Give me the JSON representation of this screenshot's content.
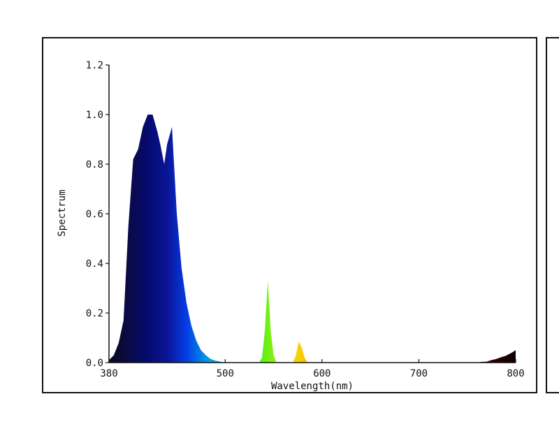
{
  "chart_data": {
    "type": "area",
    "xlabel": "Wavelength(nm)",
    "ylabel": "Spectrum",
    "xlim": [
      380,
      800
    ],
    "ylim": [
      0,
      1.2
    ],
    "x_ticks": [
      380,
      500,
      600,
      700,
      800
    ],
    "y_ticks": [
      0.0,
      0.2,
      0.4,
      0.6,
      0.8,
      1.0,
      1.2
    ],
    "y_tick_labels": [
      "0.0",
      "0.2",
      "0.4",
      "0.6",
      "0.8",
      "1.0",
      "1.2"
    ],
    "grid": false,
    "fill": "wavelength-colored spectrum",
    "x": [
      380,
      385,
      390,
      395,
      400,
      405,
      410,
      415,
      420,
      425,
      430,
      433,
      437,
      440,
      445,
      450,
      455,
      460,
      465,
      470,
      475,
      480,
      485,
      490,
      495,
      500,
      510,
      520,
      530,
      535,
      538,
      541,
      544,
      547,
      550,
      553,
      556,
      560,
      565,
      570,
      573,
      576,
      579,
      582,
      585,
      590,
      600,
      650,
      700,
      740,
      760,
      765,
      770,
      775,
      780,
      785,
      790,
      795,
      800
    ],
    "y": [
      0.01,
      0.03,
      0.08,
      0.17,
      0.55,
      0.82,
      0.86,
      0.95,
      1.0,
      1.0,
      0.93,
      0.88,
      0.8,
      0.88,
      0.95,
      0.6,
      0.38,
      0.24,
      0.15,
      0.09,
      0.05,
      0.03,
      0.015,
      0.008,
      0.004,
      0.0,
      0.0,
      0.0,
      0.0,
      0.0,
      0.02,
      0.13,
      0.33,
      0.13,
      0.03,
      0.0,
      0.0,
      0.0,
      0.0,
      0.0,
      0.03,
      0.085,
      0.06,
      0.02,
      0.0,
      0.0,
      0.0,
      0.0,
      0.0,
      0.0,
      0.0,
      0.003,
      0.004,
      0.01,
      0.015,
      0.022,
      0.028,
      0.038,
      0.05
    ]
  }
}
